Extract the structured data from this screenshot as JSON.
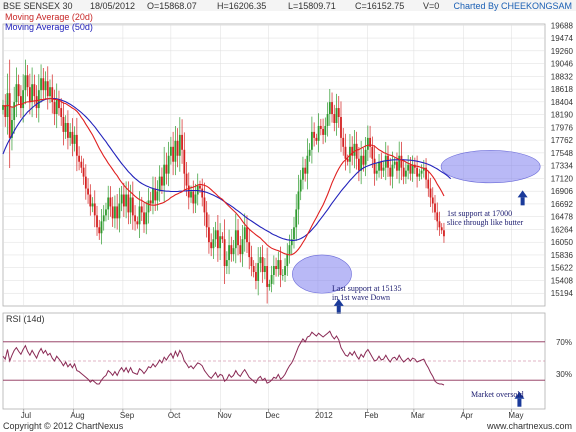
{
  "header": {
    "title": "BSE SENSEX 30",
    "date": "18/05/2012",
    "open": "O=15868.07",
    "high": "H=16206.35",
    "low": "L=15809.71",
    "close": "C=16152.75",
    "volume": "V=0",
    "charted_by": "Charted By CHEEKONGSAM"
  },
  "legend": {
    "ma20": "Moving Average (20d)",
    "ma50": "Moving Average (50d)"
  },
  "rsi_panel": {
    "label": "RSI (14d)",
    "levels": [
      "70%",
      "30%"
    ]
  },
  "annotations": {
    "first_support": [
      "1st support at 17000",
      "slice through like butter"
    ],
    "last_support": [
      "Last support at 15135",
      "in 1st wave Down"
    ],
    "oversold": "Market oversold"
  },
  "footer": {
    "copyright": "Copyright © 2012 ChartNexus",
    "watermark": "www.chartnexus.com"
  },
  "colors": {
    "up": "#2e9a2e",
    "down": "#d42020",
    "ma20": "#e02020",
    "ma50": "#2222bb",
    "rsi": "#8a2a55",
    "highlight": "#8080ee",
    "arrow": "#1a3a9a",
    "grid": "#dddddd"
  },
  "chart_data": [
    {
      "type": "candlestick",
      "title": "BSE SENSEX 30",
      "ylim": [
        14980,
        19710
      ],
      "y_ticks": [
        19688,
        19474,
        19260,
        19046,
        18832,
        18618,
        18404,
        18190,
        17976,
        17762,
        17548,
        17334,
        17120,
        16906,
        16692,
        16478,
        16264,
        16050,
        15836,
        15622,
        15408,
        15194
      ],
      "x_tick_labels": [
        "Jul",
        "Aug",
        "Sep",
        "Oct",
        "Nov",
        "Dec",
        "2012",
        "Feb",
        "Mar",
        "Apr",
        "May"
      ],
      "x_tick_days": [
        13,
        44,
        75,
        105,
        136,
        166,
        197,
        228,
        257,
        288,
        318
      ],
      "x_range_days": [
        0,
        339
      ],
      "day_spacing": 1.4,
      "close": [
        18350,
        18150,
        18550,
        17800,
        18100,
        18400,
        18700,
        18500,
        18300,
        18600,
        18850,
        18650,
        18400,
        18700,
        18500,
        18300,
        18600,
        18800,
        18600,
        18750,
        18500,
        18650,
        18400,
        18200,
        18450,
        18300,
        18150,
        17900,
        18050,
        17800,
        17900,
        17700,
        17850,
        17500,
        17400,
        17300,
        17150,
        16950,
        16850,
        16650,
        16700,
        16500,
        16300,
        16200,
        16400,
        16500,
        16600,
        16800,
        16650,
        16450,
        16650,
        16450,
        16700,
        16850,
        16650,
        16850,
        16550,
        16800,
        16500,
        16400,
        16350,
        16650,
        16550,
        16350,
        16550,
        16750,
        16700,
        16950,
        16750,
        16900,
        17150,
        17000,
        17350,
        17200,
        17500,
        17650,
        17400,
        17750,
        17500,
        17850,
        17600,
        17200,
        17000,
        16800,
        16900,
        16700,
        16850,
        17000,
        16950,
        16800,
        16550,
        16300,
        16050,
        15950,
        16100,
        16250,
        15950,
        16150,
        16100,
        15650,
        15750,
        16000,
        15850,
        15950,
        16250,
        16000,
        15850,
        16100,
        16300,
        16050,
        15800,
        15650,
        15550,
        15400,
        15700,
        15800,
        15550,
        15650,
        15300,
        15350,
        15500,
        15650,
        15600,
        15750,
        15500,
        15500,
        15650,
        15850,
        16000,
        16100,
        16300,
        16600,
        16900,
        17100,
        17300,
        17200,
        17500,
        17600,
        17900,
        17800,
        17750,
        18000,
        17950,
        17850,
        18000,
        18200,
        18400,
        18200,
        18050,
        18300,
        18150,
        17800,
        17650,
        17450,
        17400,
        17650,
        17500,
        17700,
        17450,
        17250,
        17500,
        17350,
        17600,
        17800,
        17650,
        17450,
        17200,
        17250,
        17400,
        17250,
        17300,
        17500,
        17300,
        17150,
        17350,
        17400,
        17250,
        17500,
        17300,
        17150,
        17250,
        17350,
        17200,
        17350,
        17300,
        17150,
        17200,
        17250,
        17300,
        17100,
        16950,
        16800,
        16700,
        16550,
        16400,
        16300,
        16250,
        16150
      ],
      "ma20": [
        18345,
        18325,
        18350,
        18330,
        18315,
        18320,
        18345,
        18360,
        18360,
        18375,
        18395,
        18405,
        18405,
        18415,
        18420,
        18425,
        18430,
        18445,
        18440,
        18455,
        18455,
        18460,
        18455,
        18445,
        18445,
        18430,
        18410,
        18385,
        18375,
        18350,
        18325,
        18300,
        18280,
        18245,
        18200,
        18145,
        18095,
        18030,
        17970,
        17910,
        17850,
        17775,
        17700,
        17625,
        17560,
        17495,
        17435,
        17375,
        17325,
        17270,
        17215,
        17165,
        17105,
        17055,
        17005,
        16965,
        16925,
        16890,
        16855,
        16820,
        16790,
        16765,
        16750,
        16725,
        16705,
        16685,
        16675,
        16670,
        16670,
        16680,
        16695,
        16705,
        16720,
        16745,
        16765,
        16800,
        16820,
        16845,
        16860,
        16880,
        16895,
        16925,
        16940,
        16950,
        16965,
        16975,
        16990,
        17010,
        17020,
        17015,
        17005,
        16990,
        16965,
        16930,
        16895,
        16865,
        16825,
        16795,
        16770,
        16730,
        16690,
        16650,
        16615,
        16580,
        16545,
        16500,
        16455,
        16400,
        16350,
        16310,
        16270,
        16235,
        16205,
        16175,
        16145,
        16120,
        16080,
        16045,
        16005,
        15975,
        15950,
        15935,
        15920,
        15910,
        15890,
        15870,
        15855,
        15845,
        15835,
        15840,
        15860,
        15890,
        15935,
        15985,
        16045,
        16105,
        16180,
        16250,
        16325,
        16395,
        16465,
        16535,
        16605,
        16675,
        16760,
        16850,
        16945,
        17045,
        17130,
        17210,
        17285,
        17345,
        17395,
        17430,
        17470,
        17510,
        17545,
        17575,
        17595,
        17605,
        17625,
        17645,
        17665,
        17675,
        17680,
        17675,
        17660,
        17630,
        17600,
        17580,
        17555,
        17540,
        17520,
        17510,
        17500,
        17475,
        17455,
        17440,
        17425,
        17415,
        17395,
        17375,
        17360,
        17340,
        17330,
        17325,
        17315,
        17300,
        17290,
        17275,
        17240,
        17200,
        17150,
        17095,
        17025,
        16965,
        16900,
        16825
      ],
      "ma50": [
        17530,
        17620,
        17705,
        17775,
        17845,
        17915,
        17980,
        18040,
        18095,
        18145,
        18190,
        18235,
        18270,
        18305,
        18335,
        18365,
        18390,
        18410,
        18430,
        18445,
        18455,
        18460,
        18460,
        18460,
        18455,
        18445,
        18435,
        18420,
        18405,
        18385,
        18365,
        18340,
        18315,
        18285,
        18255,
        18225,
        18190,
        18155,
        18115,
        18075,
        18030,
        17985,
        17935,
        17885,
        17835,
        17785,
        17735,
        17680,
        17630,
        17575,
        17525,
        17470,
        17420,
        17370,
        17325,
        17280,
        17235,
        17195,
        17155,
        17120,
        17090,
        17060,
        17035,
        17015,
        16995,
        16980,
        16965,
        16950,
        16940,
        16930,
        16920,
        16915,
        16910,
        16905,
        16905,
        16900,
        16900,
        16900,
        16900,
        16905,
        16905,
        16910,
        16910,
        16915,
        16915,
        16915,
        16915,
        16915,
        16910,
        16905,
        16895,
        16885,
        16870,
        16855,
        16840,
        16820,
        16800,
        16780,
        16755,
        16730,
        16705,
        16680,
        16655,
        16630,
        16600,
        16575,
        16545,
        16515,
        16485,
        16455,
        16430,
        16405,
        16380,
        16355,
        16330,
        16305,
        16285,
        16260,
        16240,
        16220,
        16195,
        16175,
        16160,
        16140,
        16125,
        16110,
        16100,
        16090,
        16085,
        16080,
        16080,
        16085,
        16095,
        16110,
        16130,
        16155,
        16185,
        16220,
        16260,
        16300,
        16345,
        16395,
        16445,
        16495,
        16545,
        16595,
        16650,
        16705,
        16755,
        16805,
        16855,
        16905,
        16950,
        16995,
        17040,
        17085,
        17125,
        17165,
        17205,
        17240,
        17270,
        17295,
        17315,
        17330,
        17345,
        17360,
        17370,
        17380,
        17390,
        17400,
        17410,
        17415,
        17420,
        17425,
        17430,
        17432,
        17433,
        17434,
        17434,
        17432,
        17430,
        17428,
        17425,
        17420,
        17415,
        17408,
        17400,
        17390,
        17380,
        17370,
        17355,
        17340,
        17320,
        17300,
        17280,
        17255,
        17230,
        17205,
        17180,
        17150,
        17115
      ],
      "highlights": [
        {
          "day_range": [
            181,
            218
          ],
          "value_range": [
            15194,
            15836
          ]
        },
        {
          "day_range": [
            274,
            336
          ],
          "value_range": [
            17046,
            17590
          ]
        }
      ],
      "markers": [
        {
          "day": 210,
          "value": 15100
        },
        {
          "day": 325,
          "value": 16920
        }
      ]
    },
    {
      "type": "line",
      "title": "RSI (14d)",
      "ylim": [
        0,
        100
      ],
      "y_ticks": [
        70,
        30
      ],
      "rsi": [
        55,
        52,
        62,
        50,
        56,
        61,
        64,
        60,
        57,
        62,
        66,
        60,
        56,
        61,
        57,
        53,
        59,
        63,
        58,
        61,
        56,
        58,
        53,
        50,
        55,
        52,
        49,
        45,
        49,
        44,
        47,
        43,
        47,
        40,
        39,
        37,
        35,
        33,
        31,
        28,
        30,
        28,
        26,
        26,
        30,
        33,
        35,
        40,
        38,
        35,
        39,
        35,
        40,
        43,
        39,
        43,
        38,
        43,
        38,
        37,
        36,
        42,
        40,
        37,
        40,
        44,
        43,
        47,
        44,
        47,
        51,
        48,
        54,
        51,
        55,
        58,
        53,
        60,
        55,
        61,
        57,
        50,
        47,
        43,
        45,
        42,
        45,
        48,
        47,
        45,
        40,
        37,
        34,
        32,
        35,
        38,
        33,
        36,
        35,
        29,
        31,
        36,
        33,
        35,
        40,
        36,
        34,
        38,
        41,
        37,
        33,
        31,
        29,
        27,
        32,
        34,
        30,
        32,
        27,
        28,
        30,
        33,
        32,
        36,
        31,
        33,
        36,
        41,
        45,
        48,
        53,
        59,
        65,
        69,
        73,
        70,
        75,
        76,
        80,
        78,
        76,
        79,
        77,
        75,
        77,
        79,
        81,
        76,
        73,
        76,
        72,
        64,
        60,
        56,
        55,
        59,
        56,
        60,
        55,
        52,
        57,
        54,
        59,
        62,
        58,
        54,
        50,
        51,
        55,
        51,
        52,
        56,
        52,
        49,
        53,
        54,
        51,
        56,
        52,
        49,
        51,
        53,
        50,
        53,
        52,
        49,
        50,
        51,
        52,
        47,
        43,
        38,
        34,
        29,
        27,
        26,
        26,
        25
      ]
    }
  ]
}
